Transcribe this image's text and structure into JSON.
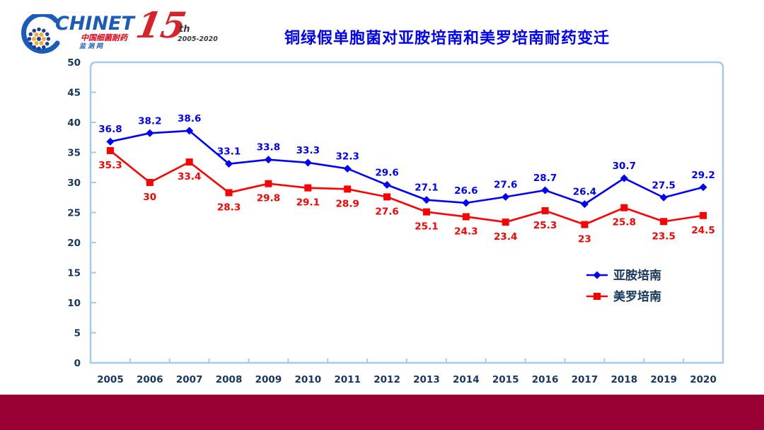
{
  "page": {
    "title": "铜绿假单胞菌对亚胺培南和美罗培南耐药变迁",
    "title_color": "#0000FF",
    "footer_bar_color": "#990033"
  },
  "logo": {
    "name": "CHINET",
    "subtitle_line1": "中国细菌耐药",
    "subtitle_line2": "监测网"
  },
  "anniversary": {
    "number": "15",
    "suffix": "th",
    "years": "2005-2020"
  },
  "chart_data": {
    "type": "line",
    "title": "铜绿假单胞菌对亚胺培南和美罗培南耐药变迁",
    "categories": [
      "2005",
      "2006",
      "2007",
      "2008",
      "2009",
      "2010",
      "2011",
      "2012",
      "2013",
      "2014",
      "2015",
      "2016",
      "2017",
      "2018",
      "2019",
      "2020"
    ],
    "series": [
      {
        "id": "imipenem",
        "name": "亚胺培南",
        "color": "#0000FF",
        "marker": "diamond",
        "values": [
          36.8,
          38.2,
          38.6,
          33.1,
          33.8,
          33.3,
          32.3,
          29.6,
          27.1,
          26.6,
          27.6,
          28.7,
          26.4,
          30.7,
          27.5,
          29.2
        ]
      },
      {
        "id": "meropenem",
        "name": "美罗培南",
        "color": "#FF0000",
        "marker": "square",
        "values": [
          35.3,
          30,
          33.4,
          28.3,
          29.8,
          29.1,
          28.9,
          27.6,
          25.1,
          24.3,
          23.4,
          25.3,
          23,
          25.8,
          23.5,
          24.5
        ]
      }
    ],
    "ylim": [
      0,
      50
    ],
    "ytick_step": 5,
    "grid": false,
    "data_labels": true,
    "legend_position": "inside-right",
    "axis_color": "#A6C9F0",
    "tick_label_color": "#17375E"
  }
}
